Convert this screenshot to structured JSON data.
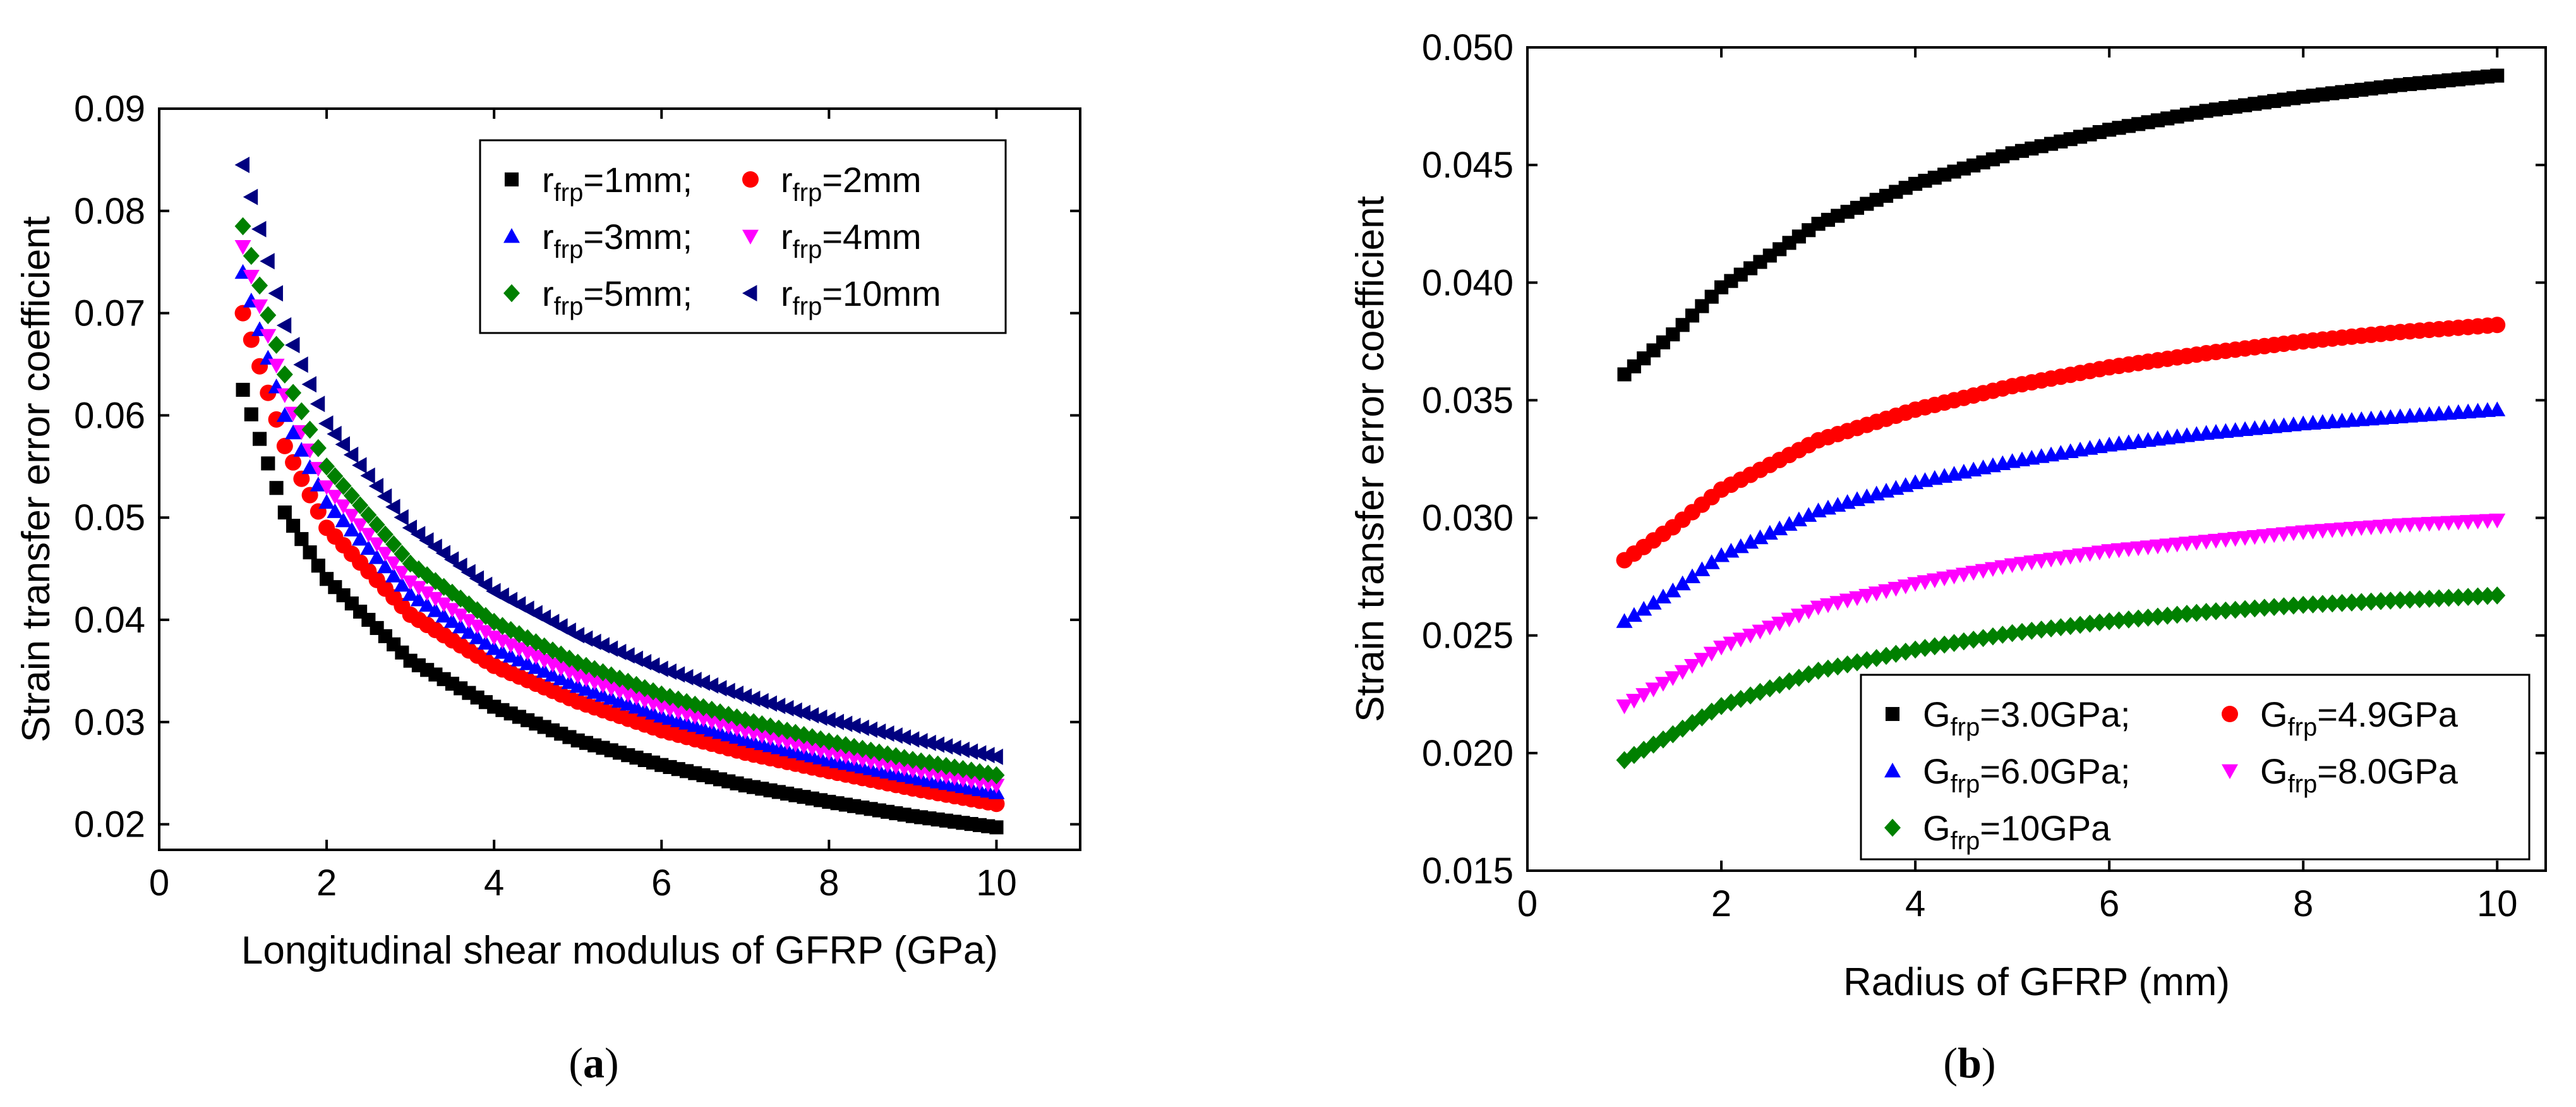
{
  "chart_data": [
    {
      "type": "scatter",
      "panel_label": "a",
      "title": "",
      "xlabel": "Longitudinal shear modulus of GFRP (GPa)",
      "ylabel": "Strain transfer error coefficient",
      "xlim": [
        0,
        11
      ],
      "ylim": [
        0.0175,
        0.09
      ],
      "xticks": [
        "0",
        "2",
        "4",
        "6",
        "8",
        "10"
      ],
      "yticks": [
        "0.02",
        "0.03",
        "0.04",
        "0.05",
        "0.06",
        "0.07",
        "0.08",
        "0.09"
      ],
      "legend_position": "top-right",
      "x": {
        "start": 1.0,
        "end": 10.0,
        "step": 0.1
      },
      "series": [
        {
          "name": "r_frp=1mm;",
          "label_main": "r",
          "label_sub": "frp",
          "label_rest": "=1mm;",
          "color": "#000000",
          "marker": "square",
          "y_at": {
            "1": 0.0625,
            "1.5": 0.0505,
            "2": 0.044,
            "3": 0.036,
            "4": 0.0315,
            "5": 0.0282,
            "6": 0.0258,
            "7": 0.0238,
            "8": 0.0222,
            "9": 0.0208,
            "10": 0.0197
          }
        },
        {
          "name": "r_frp=2mm",
          "label_main": "r",
          "label_sub": "frp",
          "label_rest": "=2mm",
          "color": "#ff0000",
          "marker": "circle",
          "y_at": {
            "1": 0.07,
            "1.5": 0.057,
            "2": 0.049,
            "3": 0.0405,
            "4": 0.0355,
            "5": 0.032,
            "6": 0.0292,
            "7": 0.027,
            "8": 0.0252,
            "9": 0.0235,
            "10": 0.022
          }
        },
        {
          "name": "r_frp=3mm;",
          "label_main": "r",
          "label_sub": "frp",
          "label_rest": "=3mm;",
          "color": "#0000ff",
          "marker": "triangle-up",
          "y_at": {
            "1": 0.074,
            "1.5": 0.06,
            "2": 0.0515,
            "3": 0.0425,
            "4": 0.0372,
            "5": 0.0335,
            "6": 0.0306,
            "7": 0.0283,
            "8": 0.0263,
            "9": 0.0246,
            "10": 0.0231
          }
        },
        {
          "name": "r_frp=4mm",
          "label_main": "r",
          "label_sub": "frp",
          "label_rest": "=4mm",
          "color": "#ff00ff",
          "marker": "triangle-down",
          "y_at": {
            "1": 0.0765,
            "1.5": 0.062,
            "2": 0.053,
            "3": 0.0437,
            "4": 0.0383,
            "5": 0.0345,
            "6": 0.0315,
            "7": 0.0291,
            "8": 0.027,
            "9": 0.0253,
            "10": 0.0238
          }
        },
        {
          "name": "r_frp=5mm;",
          "label_main": "r",
          "label_sub": "frp",
          "label_rest": "=5mm;",
          "color": "#008000",
          "marker": "diamond",
          "y_at": {
            "1": 0.0785,
            "1.5": 0.064,
            "2": 0.055,
            "3": 0.0455,
            "4": 0.0398,
            "5": 0.0358,
            "6": 0.0327,
            "7": 0.0302,
            "8": 0.0281,
            "9": 0.0263,
            "10": 0.0248
          }
        },
        {
          "name": "r_frp=10mm",
          "label_main": "r",
          "label_sub": "frp",
          "label_rest": "=10mm",
          "color": "#000080",
          "marker": "triangle-left",
          "y_at": {
            "1": 0.0845,
            "1.5": 0.0688,
            "2": 0.0592,
            "3": 0.049,
            "4": 0.0428,
            "5": 0.0385,
            "6": 0.0352,
            "7": 0.0325,
            "8": 0.0302,
            "9": 0.0283,
            "10": 0.0266
          }
        }
      ]
    },
    {
      "type": "scatter",
      "panel_label": "b",
      "title": "",
      "xlabel": "Radius of GFRP (mm)",
      "ylabel": "Strain transfer error coefficient",
      "xlim": [
        0,
        10.5
      ],
      "ylim": [
        0.015,
        0.05
      ],
      "xticks": [
        "0",
        "2",
        "4",
        "6",
        "8",
        "10"
      ],
      "yticks": [
        "0.015",
        "0.020",
        "0.025",
        "0.030",
        "0.035",
        "0.040",
        "0.045",
        "0.050"
      ],
      "legend_position": "bottom-right",
      "x": {
        "start": 1.0,
        "end": 10.0,
        "step": 0.1
      },
      "series": [
        {
          "name": "G_frp=3.0GPa;",
          "label_main": "G",
          "label_sub": "frp",
          "label_rest": "=3.0GPa;",
          "color": "#000000",
          "marker": "square",
          "y_at": {
            "1": 0.0361,
            "1.5": 0.0378,
            "2": 0.0398,
            "3": 0.0425,
            "4": 0.0442,
            "5": 0.0455,
            "6": 0.0465,
            "7": 0.0473,
            "8": 0.0479,
            "9": 0.0484,
            "10": 0.0488
          }
        },
        {
          "name": "G_frp=4.9GPa",
          "label_main": "G",
          "label_sub": "frp",
          "label_rest": "=4.9GPa",
          "color": "#ff0000",
          "marker": "circle",
          "y_at": {
            "1": 0.0282,
            "1.5": 0.0296,
            "2": 0.0312,
            "3": 0.0333,
            "4": 0.0346,
            "5": 0.0356,
            "6": 0.0364,
            "7": 0.037,
            "8": 0.0375,
            "9": 0.0379,
            "10": 0.0382
          }
        },
        {
          "name": "G_frp=6.0GPa;",
          "label_main": "G",
          "label_sub": "frp",
          "label_rest": "=6.0GPa;",
          "color": "#0000ff",
          "marker": "triangle-up",
          "y_at": {
            "1": 0.0256,
            "1.5": 0.0269,
            "2": 0.0284,
            "3": 0.0303,
            "4": 0.0315,
            "5": 0.0324,
            "6": 0.0331,
            "7": 0.0336,
            "8": 0.034,
            "9": 0.0343,
            "10": 0.0346
          }
        },
        {
          "name": "G_frp=8.0GPa",
          "label_main": "G",
          "label_sub": "frp",
          "label_rest": "=8.0GPa",
          "color": "#ff00ff",
          "marker": "triangle-down",
          "y_at": {
            "1": 0.022,
            "1.5": 0.0232,
            "2": 0.0245,
            "3": 0.0262,
            "4": 0.0272,
            "5": 0.028,
            "6": 0.0286,
            "7": 0.029,
            "8": 0.0294,
            "9": 0.0297,
            "10": 0.0299
          }
        },
        {
          "name": "G_frp=10GPa",
          "label_main": "G",
          "label_sub": "frp",
          "label_rest": "=10GPa",
          "color": "#008000",
          "marker": "diamond",
          "y_at": {
            "1": 0.0197,
            "1.5": 0.0208,
            "2": 0.022,
            "3": 0.0235,
            "4": 0.0244,
            "5": 0.0251,
            "6": 0.0256,
            "7": 0.026,
            "8": 0.0263,
            "9": 0.0265,
            "10": 0.0267
          }
        }
      ]
    }
  ],
  "captions": {
    "a": {
      "open": "(",
      "letter": "a",
      "close": ")"
    },
    "b": {
      "open": "(",
      "letter": "b",
      "close": ")"
    }
  }
}
